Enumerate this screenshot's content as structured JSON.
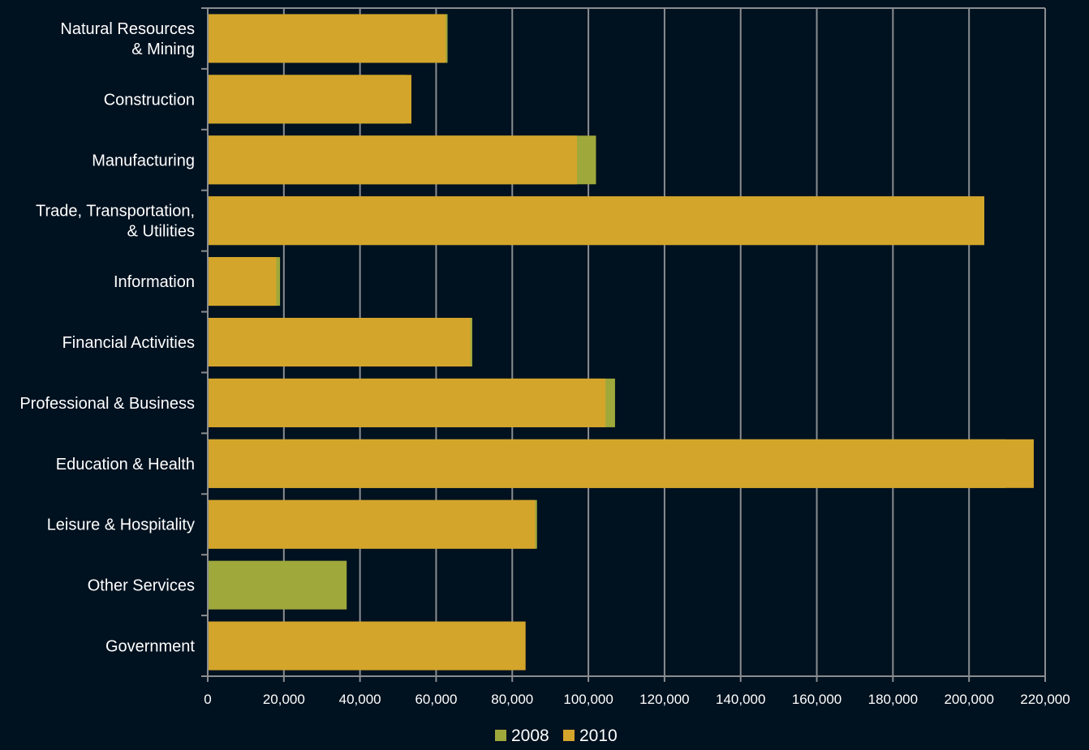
{
  "chart_data": {
    "type": "bar",
    "orientation": "horizontal",
    "overlap": true,
    "categories": [
      [
        "Natural Resources",
        "& Mining"
      ],
      [
        "Construction"
      ],
      [
        "Manufacturing"
      ],
      [
        "Trade, Transportation,",
        "& Utilities"
      ],
      [
        "Information"
      ],
      [
        "Financial Activities"
      ],
      [
        "Professional & Business"
      ],
      [
        "Education & Health"
      ],
      [
        "Leisure & Hospitality"
      ],
      [
        "Other Services"
      ],
      [
        "Government"
      ]
    ],
    "series": [
      {
        "name": "2008",
        "color": "#9fa83b",
        "values": [
          63000,
          52000,
          102000,
          204000,
          19000,
          69500,
          107000,
          209500,
          86500,
          36500,
          80500
        ]
      },
      {
        "name": "2010",
        "color": "#d4a52b",
        "values": [
          62500,
          53500,
          97000,
          204000,
          18000,
          69000,
          104500,
          217000,
          86000,
          0,
          83500
        ]
      }
    ],
    "xlim": [
      0,
      220000
    ],
    "xticks": [
      0,
      20000,
      40000,
      60000,
      80000,
      100000,
      120000,
      140000,
      160000,
      180000,
      200000,
      220000
    ],
    "xtick_labels": [
      "0",
      "20,000",
      "40,000",
      "60,000",
      "80,000",
      "100,000",
      "120,000",
      "140,000",
      "160,000",
      "180,000",
      "200,000",
      "220,000"
    ],
    "grid": "vertical",
    "legend": "bottom"
  }
}
